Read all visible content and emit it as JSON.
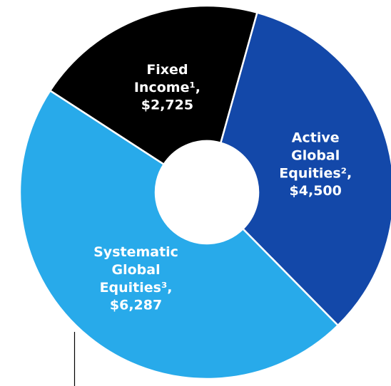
{
  "chart_data": {
    "type": "donut",
    "categories": [
      "Fixed Income¹,",
      "Active Global Equities²,",
      "Systematic Global Equities³,"
    ],
    "values": [
      2725,
      4500,
      6287
    ],
    "value_labels": [
      "$2,725",
      "$4,500",
      "$6,287"
    ],
    "colors": [
      "#000000",
      "#1348a9",
      "#28aaea"
    ]
  }
}
